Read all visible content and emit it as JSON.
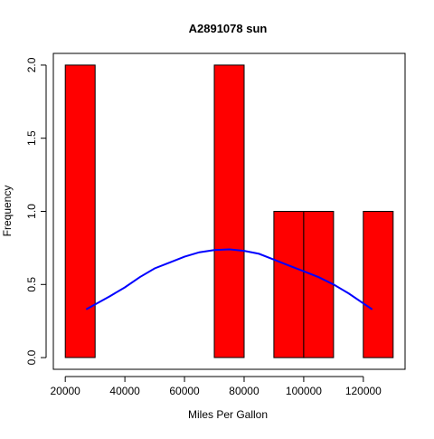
{
  "chart_data": {
    "type": "bar",
    "title": "A2891078 sun",
    "xlabel": "Miles Per Gallon",
    "ylabel": "Frequency",
    "bins": [
      {
        "start": 20000,
        "end": 30000,
        "count": 2
      },
      {
        "start": 30000,
        "end": 40000,
        "count": 0
      },
      {
        "start": 40000,
        "end": 50000,
        "count": 0
      },
      {
        "start": 50000,
        "end": 60000,
        "count": 0
      },
      {
        "start": 60000,
        "end": 70000,
        "count": 0
      },
      {
        "start": 70000,
        "end": 80000,
        "count": 2
      },
      {
        "start": 80000,
        "end": 90000,
        "count": 0
      },
      {
        "start": 90000,
        "end": 100000,
        "count": 1
      },
      {
        "start": 100000,
        "end": 110000,
        "count": 1
      },
      {
        "start": 110000,
        "end": 120000,
        "count": 0
      },
      {
        "start": 120000,
        "end": 130000,
        "count": 1
      }
    ],
    "density_curve": {
      "color": "#0000ff",
      "points": [
        {
          "x": 27000,
          "y": 0.33
        },
        {
          "x": 35000,
          "y": 0.42
        },
        {
          "x": 40000,
          "y": 0.48
        },
        {
          "x": 45000,
          "y": 0.55
        },
        {
          "x": 50000,
          "y": 0.61
        },
        {
          "x": 55000,
          "y": 0.65
        },
        {
          "x": 60000,
          "y": 0.69
        },
        {
          "x": 65000,
          "y": 0.72
        },
        {
          "x": 70000,
          "y": 0.735
        },
        {
          "x": 75000,
          "y": 0.74
        },
        {
          "x": 80000,
          "y": 0.73
        },
        {
          "x": 85000,
          "y": 0.71
        },
        {
          "x": 90000,
          "y": 0.67
        },
        {
          "x": 95000,
          "y": 0.63
        },
        {
          "x": 100000,
          "y": 0.59
        },
        {
          "x": 105000,
          "y": 0.55
        },
        {
          "x": 110000,
          "y": 0.5
        },
        {
          "x": 115000,
          "y": 0.44
        },
        {
          "x": 123000,
          "y": 0.33
        }
      ]
    },
    "bar_color": "#ff0000",
    "xlim": [
      16000,
      134000
    ],
    "ylim": [
      -0.08,
      2.08
    ],
    "xticks": [
      20000,
      40000,
      60000,
      80000,
      100000,
      120000
    ],
    "xtick_labels": [
      "20000",
      "40000",
      "60000",
      "80000",
      "100000",
      "120000"
    ],
    "yticks": [
      0.0,
      0.5,
      1.0,
      1.5,
      2.0
    ],
    "ytick_labels": [
      "0.0",
      "0.5",
      "1.0",
      "1.5",
      "2.0"
    ],
    "grid": false,
    "legend": "none"
  }
}
